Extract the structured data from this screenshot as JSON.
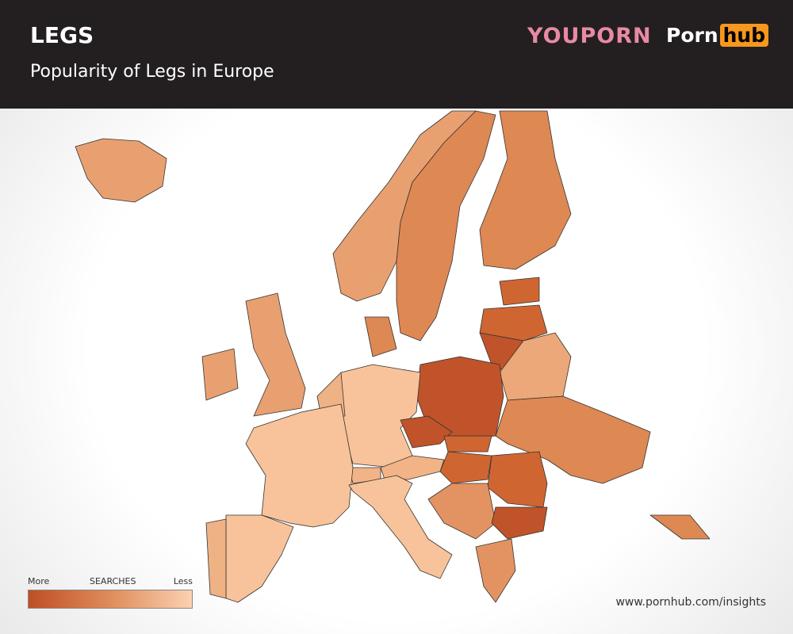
{
  "header": {
    "title": "LEGS",
    "subtitle": "Popularity of Legs in Europe",
    "logo_left": "YOUPORN",
    "logo_right_a": "Porn",
    "logo_right_b": "hub"
  },
  "legend": {
    "more": "More",
    "label": "SEARCHES",
    "less": "Less"
  },
  "footer": {
    "url": "www.pornhub.com/insights"
  }
}
